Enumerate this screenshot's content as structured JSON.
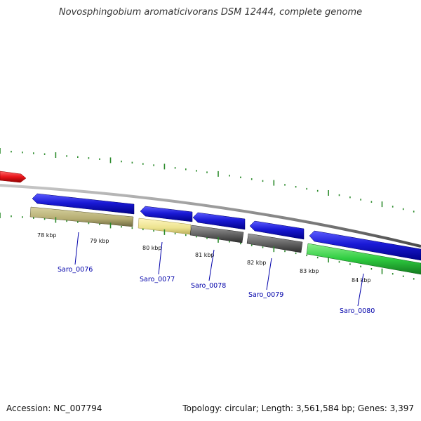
{
  "title": "Novosphingobium aromaticivorans DSM 12444, complete genome",
  "footer": {
    "accession": "Accession: NC_007794",
    "summary": "Topology: circular; Length: 3,561,584 bp; Genes: 3,397"
  },
  "colors": {
    "backbone": "#888888",
    "forward_gene": "#1a1ad6",
    "previous_gene": "#e8141a",
    "tick": "#2a8a2a",
    "label": "#0000aa"
  },
  "ruler": {
    "unit": "kbp",
    "ticks": [
      "78 kbp",
      "79 kbp",
      "80 kbp",
      "81 kbp",
      "82 kbp",
      "83 kbp",
      "84 kbp"
    ]
  },
  "genes": [
    {
      "name": "Saro_0076",
      "feature_color": "#b5ad72"
    },
    {
      "name": "Saro_0077",
      "feature_color": "#ece28e"
    },
    {
      "name": "Saro_0078",
      "feature_color": "#666666"
    },
    {
      "name": "Saro_0079",
      "feature_color": "#666666"
    },
    {
      "name": "Saro_0080",
      "feature_color": "#2ecc40"
    }
  ]
}
